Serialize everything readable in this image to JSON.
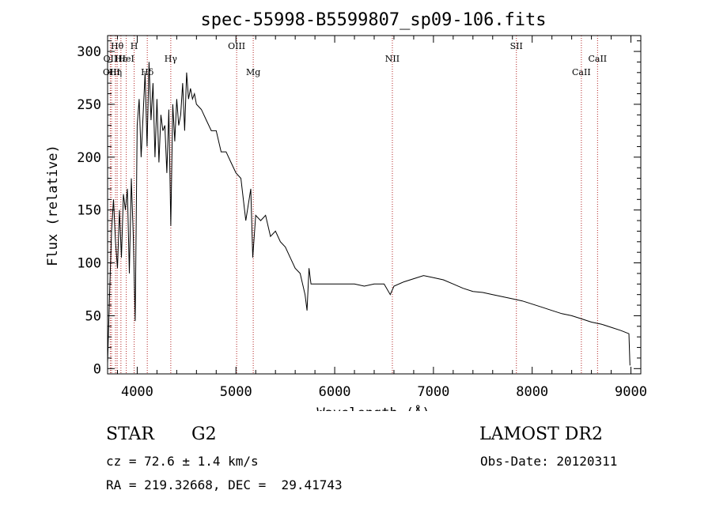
{
  "chart_data": {
    "type": "line",
    "title": "spec-55998-B5599807_sp09-106.fits",
    "xlabel": "Wavelength (Å)",
    "ylabel": "Flux (relative)",
    "xlim": [
      3700,
      9100
    ],
    "ylim": [
      -5,
      315
    ],
    "xticks": [
      4000,
      5000,
      6000,
      7000,
      8000,
      9000
    ],
    "yticks": [
      0,
      50,
      100,
      150,
      200,
      250,
      300
    ],
    "grid": false,
    "line_color": "#000000",
    "marker_color": "#b22222",
    "series": [
      {
        "x": [
          3700,
          3720,
          3740,
          3760,
          3780,
          3800,
          3820,
          3840,
          3860,
          3880,
          3900,
          3920,
          3940,
          3960,
          3980,
          4000,
          4020,
          4040,
          4060,
          4080,
          4100,
          4120,
          4140,
          4160,
          4180,
          4200,
          4220,
          4240,
          4260,
          4280,
          4300,
          4320,
          4340,
          4360,
          4380,
          4400,
          4420,
          4440,
          4460,
          4480,
          4500,
          4520,
          4540,
          4560,
          4580,
          4600,
          4650,
          4700,
          4750,
          4800,
          4850,
          4900,
          4950,
          5000,
          5050,
          5100,
          5150,
          5170,
          5200,
          5250,
          5300,
          5350,
          5400,
          5450,
          5500,
          5550,
          5600,
          5650,
          5700,
          5720,
          5740,
          5760,
          5800,
          5900,
          6000,
          6100,
          6200,
          6300,
          6400,
          6500,
          6563,
          6600,
          6700,
          6800,
          6900,
          7000,
          7100,
          7200,
          7300,
          7400,
          7500,
          7600,
          7700,
          7800,
          7900,
          8000,
          8100,
          8200,
          8300,
          8400,
          8500,
          8600,
          8700,
          8800,
          8900,
          8980,
          8990
        ],
        "y": [
          5,
          70,
          130,
          160,
          120,
          95,
          150,
          105,
          165,
          150,
          170,
          90,
          180,
          125,
          45,
          230,
          255,
          200,
          240,
          280,
          210,
          290,
          235,
          270,
          200,
          255,
          195,
          240,
          225,
          230,
          185,
          245,
          135,
          250,
          215,
          255,
          230,
          240,
          270,
          225,
          280,
          255,
          265,
          255,
          260,
          250,
          245,
          235,
          225,
          225,
          205,
          205,
          195,
          185,
          180,
          140,
          170,
          105,
          145,
          140,
          145,
          125,
          130,
          120,
          115,
          105,
          95,
          90,
          70,
          55,
          95,
          80,
          80,
          80,
          80,
          80,
          80,
          78,
          80,
          80,
          70,
          78,
          82,
          85,
          88,
          86,
          84,
          80,
          76,
          73,
          72,
          70,
          68,
          66,
          64,
          61,
          58,
          55,
          52,
          50,
          47,
          44,
          42,
          39,
          36,
          33,
          3
        ]
      }
    ],
    "lines": [
      {
        "label": "Hθ",
        "x": 3797,
        "row": 1
      },
      {
        "label": "OII",
        "x": 3727,
        "row": 2
      },
      {
        "label": "Hε",
        "x": 3835,
        "row": 2
      },
      {
        "label": "HeI",
        "x": 3889,
        "row": 2
      },
      {
        "label": "OIII",
        "x": 3740,
        "row": 3
      },
      {
        "label": "Hη",
        "x": 3780,
        "row": 3
      },
      {
        "label": "H",
        "x": 3969,
        "row": 1
      },
      {
        "label": "Hδ",
        "x": 4102,
        "row": 3
      },
      {
        "label": "Hγ",
        "x": 4340,
        "row": 2
      },
      {
        "label": "OIII",
        "x": 5007,
        "row": 1
      },
      {
        "label": "Mg",
        "x": 5175,
        "row": 3
      },
      {
        "label": "NII",
        "x": 6584,
        "row": 2
      },
      {
        "label": "SII",
        "x": 7840,
        "row": 1
      },
      {
        "label": "CaII",
        "x": 8498,
        "row": 3
      },
      {
        "label": "CaII",
        "x": 8662,
        "row": 2
      }
    ]
  },
  "info": {
    "object_class": "STAR",
    "subclass": "G2",
    "survey": "LAMOST DR2",
    "redshift_text": "cz = 72.6 ± 1.4 km/s",
    "obs_date_text": "Obs-Date: 20120311",
    "coords_text": "RA = 219.32668, DEC =  29.41743"
  }
}
